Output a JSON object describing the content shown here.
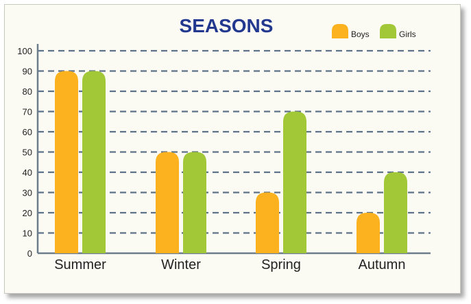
{
  "chart_data": {
    "type": "bar",
    "title": "SEASONS",
    "categories": [
      "Summer",
      "Winter",
      "Spring",
      "Autumn"
    ],
    "series": [
      {
        "name": "Boys",
        "values": [
          90,
          50,
          30,
          20
        ],
        "color": "#fbb21e"
      },
      {
        "name": "Girls",
        "values": [
          90,
          50,
          70,
          40
        ],
        "color": "#a2c837"
      }
    ],
    "xlabel": "",
    "ylabel": "",
    "ylim": [
      0,
      100
    ],
    "yticks": [
      "0",
      "10",
      "20",
      "30",
      "40",
      "50",
      "60",
      "70",
      "80",
      "90",
      "100"
    ],
    "grid": true,
    "legend": "top-right",
    "title_color": "#23398f",
    "grid_color": "#5e7289"
  }
}
